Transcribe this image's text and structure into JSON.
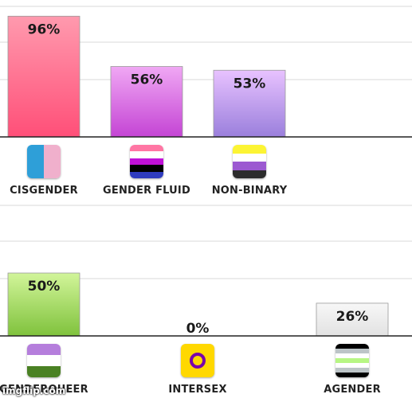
{
  "chart_data": [
    {
      "type": "bar",
      "categories": [
        "CISGENDER",
        "GENDER FLUID",
        "NON-BINARY",
        ""
      ],
      "values": [
        96,
        56,
        53,
        null
      ],
      "data_labels": [
        "96%",
        "56%",
        "53%",
        ""
      ],
      "ylim": [
        0,
        100
      ],
      "grid": true,
      "bar_colors": [
        [
          "#ff9aae",
          "#ff4f78"
        ],
        [
          "#f0a8f4",
          "#c444d4"
        ],
        [
          "#e8c2ff",
          "#9a7fdc"
        ],
        null
      ],
      "flags": [
        {
          "icon": "cisgender-flag-icon",
          "layout": "vertical",
          "stripes": [
            "#2e9fd8",
            "#f0b0cc"
          ]
        },
        {
          "icon": "genderfluid-flag-icon",
          "layout": "horizontal",
          "stripes": [
            "#ff76a4",
            "#ffffff",
            "#c011d7",
            "#000000",
            "#2f3cbe"
          ]
        },
        {
          "icon": "nonbinary-flag-icon",
          "layout": "horizontal",
          "stripes": [
            "#fcf434",
            "#ffffff",
            "#9c59d1",
            "#2c2c2c"
          ]
        },
        null
      ]
    },
    {
      "type": "bar",
      "categories": [
        "GENDERQUEER",
        "INTERSEX",
        "AGENDER"
      ],
      "values": [
        50,
        0,
        26
      ],
      "data_labels": [
        "50%",
        "0%",
        "26%"
      ],
      "ylim": [
        0,
        100
      ],
      "grid": true,
      "bar_colors": [
        [
          "#d2f59a",
          "#7fc23c"
        ],
        [
          "#e8e8e8",
          "#d0d0d0"
        ],
        [
          "#f7f7f7",
          "#e2e2e2"
        ]
      ],
      "flags": [
        {
          "icon": "genderqueer-flag-icon",
          "layout": "horizontal",
          "stripes": [
            "#b57edc",
            "#ffffff",
            "#4a8123"
          ]
        },
        {
          "icon": "intersex-flag-icon",
          "layout": "ring",
          "stripes": [
            "#ffd800",
            "#7902aa"
          ]
        },
        {
          "icon": "agender-flag-icon",
          "layout": "horizontal",
          "stripes": [
            "#000000",
            "#bcc4c7",
            "#ffffff",
            "#b7f684",
            "#ffffff",
            "#bcc4c7",
            "#000000"
          ]
        }
      ]
    }
  ],
  "watermark": "imgflip.com"
}
